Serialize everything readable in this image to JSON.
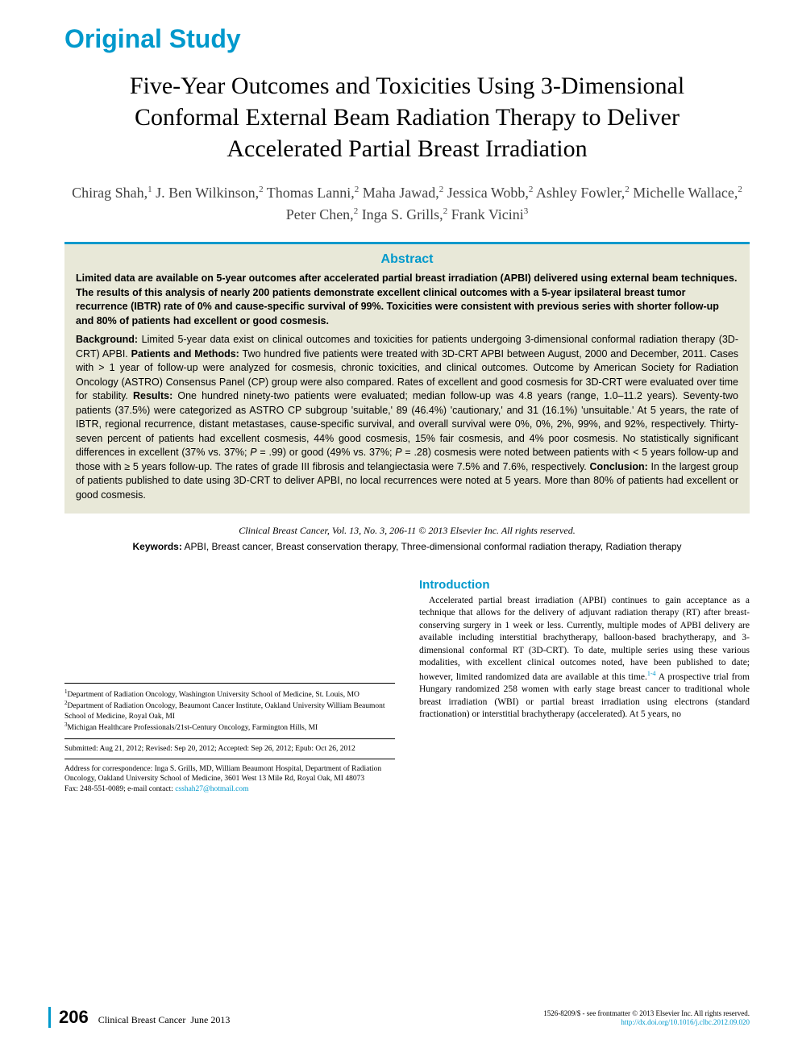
{
  "section_label": "Original Study",
  "title": "Five-Year Outcomes and Toxicities Using 3-Dimensional Conformal External Beam Radiation Therapy to Deliver Accelerated Partial Breast Irradiation",
  "authors_html": "Chirag Shah,<sup>1</sup> J. Ben Wilkinson,<sup>2</sup> Thomas Lanni,<sup>2</sup> Maha Jawad,<sup>2</sup> Jessica Wobb,<sup>2</sup> Ashley Fowler,<sup>2</sup> Michelle Wallace,<sup>2</sup> Peter Chen,<sup>2</sup> Inga S. Grills,<sup>2</sup> Frank Vicini<sup>3</sup>",
  "abstract": {
    "heading": "Abstract",
    "summary": "Limited data are available on 5-year outcomes after accelerated partial breast irradiation (APBI) delivered using external beam techniques. The results of this analysis of nearly 200 patients demonstrate excellent clinical outcomes with a 5-year ipsilateral breast tumor recurrence (IBTR) rate of 0% and cause-specific survival of 99%. Toxicities were consistent with previous series with shorter follow-up and 80% of patients had excellent or good cosmesis.",
    "body_html": "<b>Background:</b> Limited 5-year data exist on clinical outcomes and toxicities for patients undergoing 3-dimensional conformal radiation therapy (3D-CRT) APBI. <b>Patients and Methods:</b> Two hundred five patients were treated with 3D-CRT APBI between August, 2000 and December, 2011. Cases with > 1 year of follow-up were analyzed for cosmesis, chronic toxicities, and clinical outcomes. Outcome by American Society for Radiation Oncology (ASTRO) Consensus Panel (CP) group were also compared. Rates of excellent and good cosmesis for 3D-CRT were evaluated over time for stability. <b>Results:</b> One hundred ninety-two patients were evaluated; median follow-up was 4.8 years (range, 1.0–11.2 years). Seventy-two patients (37.5%) were categorized as ASTRO CP subgroup 'suitable,' 89 (46.4%) 'cautionary,' and 31 (16.1%) 'unsuitable.' At 5 years, the rate of IBTR, regional recurrence, distant metastases, cause-specific survival, and overall survival were 0%, 0%, 2%, 99%, and 92%, respectively. Thirty-seven percent of patients had excellent cosmesis, 44% good cosmesis, 15% fair cosmesis, and 4% poor cosmesis. No statistically significant differences in excellent (37% vs. 37%; <i>P</i> = .99) or good (49% vs. 37%; <i>P</i> = .28) cosmesis were noted between patients with < 5 years follow-up and those with ≥ 5 years follow-up. The rates of grade III fibrosis and telangiectasia were 7.5% and 7.6%, respectively. <b>Conclusion:</b> In the largest group of patients published to date using 3D-CRT to deliver APBI, no local recurrences were noted at 5 years. More than 80% of patients had excellent or good cosmesis."
  },
  "citation": "Clinical Breast Cancer, Vol. 13, No. 3, 206-11 © 2013 Elsevier Inc. All rights reserved.",
  "keywords": {
    "label": "Keywords:",
    "text": "APBI, Breast cancer, Breast conservation therapy, Three-dimensional conformal radiation therapy, Radiation therapy"
  },
  "affiliations": {
    "a1": "Department of Radiation Oncology, Washington University School of Medicine, St. Louis, MO",
    "a2": "Department of Radiation Oncology, Beaumont Cancer Institute, Oakland University William Beaumont School of Medicine, Royal Oak, MI",
    "a3": "Michigan Healthcare Professionals/21st-Century Oncology, Farmington Hills, MI",
    "submitted": "Submitted: Aug 21, 2012; Revised: Sep 20, 2012; Accepted: Sep 26, 2012; Epub: Oct 26, 2012",
    "correspondence": "Address for correspondence: Inga S. Grills, MD, William Beaumont Hospital, Department of Radiation Oncology, Oakland University School of Medicine, 3601 West 13 Mile Rd, Royal Oak, MI 48073",
    "fax_prefix": "Fax: 248-551-0089; e-mail contact: ",
    "email": "csshah27@hotmail.com"
  },
  "introduction": {
    "heading": "Introduction",
    "body_html": "Accelerated partial breast irradiation (APBI) continues to gain acceptance as a technique that allows for the delivery of adjuvant radiation therapy (RT) after breast-conserving surgery in 1 week or less. Currently, multiple modes of APBI delivery are available including interstitial brachytherapy, balloon-based brachytherapy, and 3-dimensional conformal RT (3D-CRT). To date, multiple series using these various modalities, with excellent clinical outcomes noted, have been published to date; however, limited randomized data are available at this time.<sup>1-4</sup> A prospective trial from Hungary randomized 258 women with early stage breast cancer to traditional whole breast irradiation (WBI) or partial breast irradiation using electrons (standard fractionation) or interstitial brachytherapy (accelerated). At 5 years, no"
  },
  "footer": {
    "page": "206",
    "journal": "Clinical Breast Cancer",
    "issue_date": "June 2013",
    "frontmatter": "1526-8209/$ - see frontmatter © 2013 Elsevier Inc. All rights reserved.",
    "doi": "http://dx.doi.org/10.1016/j.clbc.2012.09.020"
  },
  "colors": {
    "accent": "#0099cc",
    "abstract_bg": "#e8e8d8",
    "text": "#000000"
  }
}
